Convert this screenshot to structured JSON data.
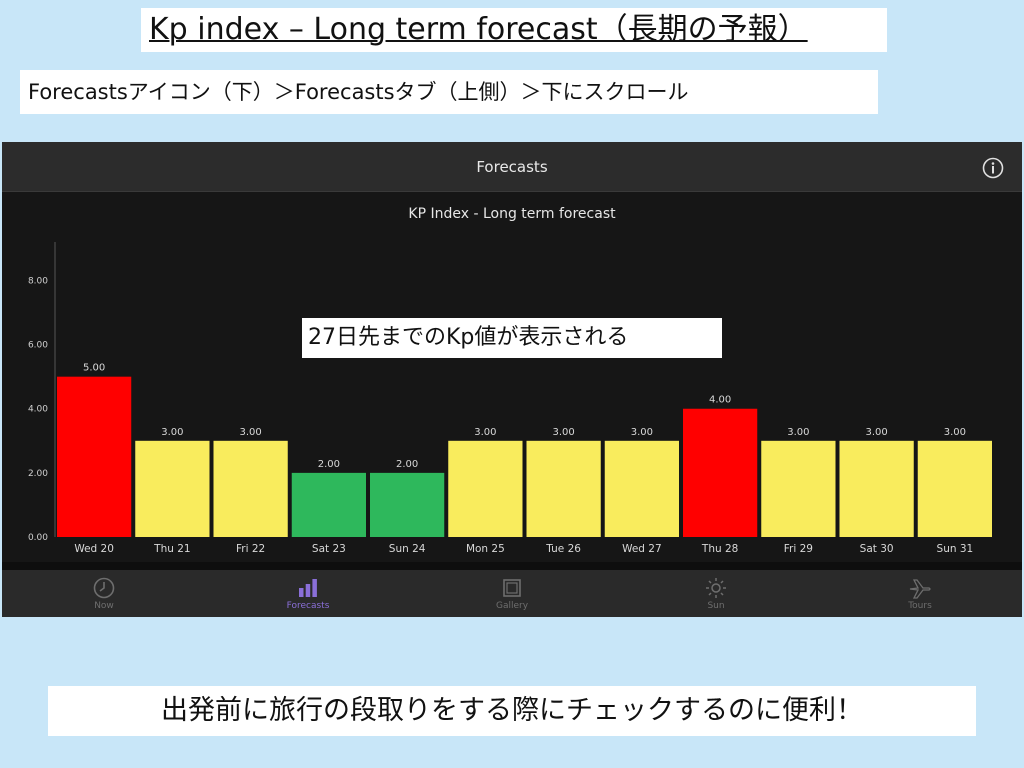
{
  "slide": {
    "title": "Kp index – Long term forecast（長期の予報）",
    "nav_instruction": "Forecastsアイコン（下）＞Forecastsタブ（上側）＞下にスクロール",
    "overlay_note": "27日先までのKp値が表示される",
    "bottom_note": "出発前に旅行の段取りをする際にチェックするのに便利！"
  },
  "app": {
    "header_title": "Forecasts",
    "info_icon": "info-circle-icon",
    "tabs": [
      {
        "label": "Now",
        "icon": "clock-icon",
        "active": false
      },
      {
        "label": "Forecasts",
        "icon": "bar-chart-icon",
        "active": true
      },
      {
        "label": "Gallery",
        "icon": "gallery-icon",
        "active": false
      },
      {
        "label": "Sun",
        "icon": "sun-icon",
        "active": false
      },
      {
        "label": "Tours",
        "icon": "airplane-icon",
        "active": false
      }
    ]
  },
  "chart_data": {
    "type": "bar",
    "title": "KP Index - Long term forecast",
    "categories": [
      "Wed 20",
      "Thu 21",
      "Fri 22",
      "Sat 23",
      "Sun 24",
      "Mon 25",
      "Tue 26",
      "Wed 27",
      "Thu 28",
      "Fri 29",
      "Sat 30",
      "Sun 31"
    ],
    "values": [
      5,
      3,
      3,
      2,
      2,
      3,
      3,
      3,
      4,
      3,
      3,
      3
    ],
    "value_labels": [
      "5.00",
      "3.00",
      "3.00",
      "2.00",
      "2.00",
      "3.00",
      "3.00",
      "3.00",
      "4.00",
      "3.00",
      "3.00",
      "3.00"
    ],
    "y_ticks": [
      "0.00",
      "2.00",
      "4.00",
      "6.00",
      "8.00"
    ],
    "y_tick_values": [
      0,
      2,
      4,
      6,
      8
    ],
    "ylim": [
      0,
      9.2
    ],
    "colors": {
      "low": "#2eb85c",
      "mid": "#f9ec5d",
      "high": "#ff0000"
    },
    "grid": false
  }
}
